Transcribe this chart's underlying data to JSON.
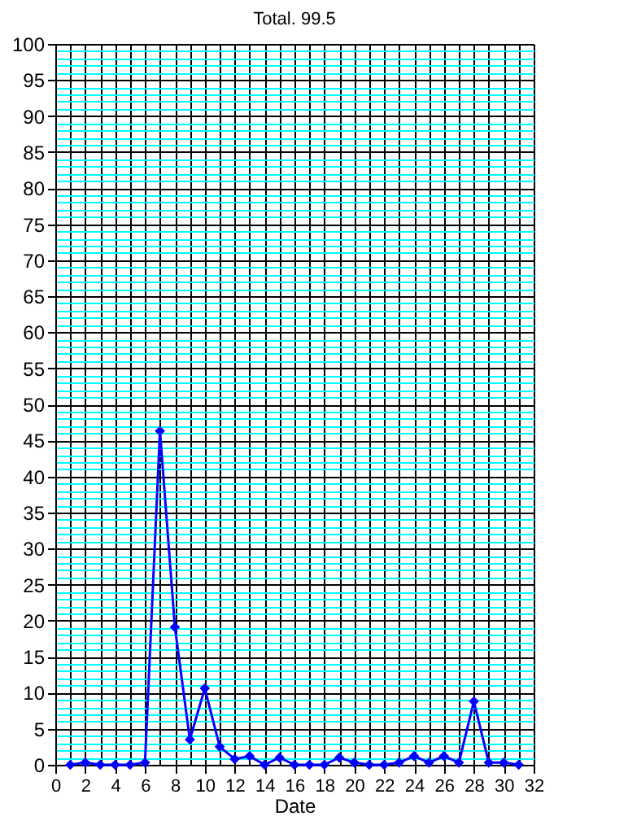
{
  "chart_data": {
    "type": "line",
    "title": "Total. 99.5",
    "xlabel": "Date",
    "x": [
      1,
      2,
      3,
      4,
      5,
      6,
      7,
      8,
      9,
      10,
      11,
      12,
      13,
      14,
      15,
      16,
      17,
      18,
      19,
      20,
      21,
      22,
      23,
      24,
      25,
      26,
      27,
      28,
      29,
      30,
      31
    ],
    "series": [
      {
        "color": "#0000ff",
        "values": [
          0,
          0.3,
          0,
          0,
          0,
          0.3,
          46.3,
          19.1,
          3.5,
          10.6,
          2.5,
          0.8,
          1.2,
          0,
          1,
          0,
          0,
          0,
          1,
          0.3,
          0,
          0,
          0.3,
          1.2,
          0.3,
          1.2,
          0.3,
          8.8,
          0.3,
          0.3,
          0
        ]
      }
    ],
    "xlim": [
      0,
      32
    ],
    "xticks": [
      0,
      {
        "value": 1,
        "label": null
      },
      2,
      {
        "value": 3,
        "label": null
      },
      4,
      {
        "value": 5,
        "label": null
      },
      6,
      {
        "value": 7,
        "label": null
      },
      8,
      {
        "value": 9,
        "label": null
      },
      10,
      {
        "value": 11,
        "label": null
      },
      12,
      {
        "value": 13,
        "label": null
      },
      14,
      {
        "value": 15,
        "label": null
      },
      16,
      {
        "value": 17,
        "label": null
      },
      18,
      {
        "value": 19,
        "label": null
      },
      20,
      {
        "value": 21,
        "label": null
      },
      22,
      {
        "value": 23,
        "label": null
      },
      24,
      {
        "value": 25,
        "label": null
      },
      26,
      {
        "value": 27,
        "label": null
      },
      28,
      {
        "value": 29,
        "label": null
      },
      30,
      {
        "value": 31,
        "label": null
      },
      32
    ],
    "ylim": [
      0,
      100
    ],
    "yticks": [
      0,
      {
        "value": 1,
        "label": null
      },
      {
        "value": 2,
        "label": null
      },
      {
        "value": 3,
        "label": null
      },
      {
        "value": 4,
        "label": null
      },
      5,
      {
        "value": 6,
        "label": null
      },
      {
        "value": 7,
        "label": null
      },
      {
        "value": 8,
        "label": null
      },
      {
        "value": 9,
        "label": null
      },
      10,
      {
        "value": 11,
        "label": null
      },
      {
        "value": 12,
        "label": null
      },
      {
        "value": 13,
        "label": null
      },
      {
        "value": 14,
        "label": null
      },
      15,
      {
        "value": 16,
        "label": null
      },
      {
        "value": 17,
        "label": null
      },
      {
        "value": 18,
        "label": null
      },
      {
        "value": 19,
        "label": null
      },
      20,
      {
        "value": 21,
        "label": null
      },
      {
        "value": 22,
        "label": null
      },
      {
        "value": 23,
        "label": null
      },
      {
        "value": 24,
        "label": null
      },
      25,
      {
        "value": 26,
        "label": null
      },
      {
        "value": 27,
        "label": null
      },
      {
        "value": 28,
        "label": null
      },
      {
        "value": 29,
        "label": null
      },
      30,
      {
        "value": 31,
        "label": null
      },
      {
        "value": 32,
        "label": null
      },
      {
        "value": 33,
        "label": null
      },
      {
        "value": 34,
        "label": null
      },
      35,
      {
        "value": 36,
        "label": null
      },
      {
        "value": 37,
        "label": null
      },
      {
        "value": 38,
        "label": null
      },
      {
        "value": 39,
        "label": null
      },
      40,
      {
        "value": 41,
        "label": null
      },
      {
        "value": 42,
        "label": null
      },
      {
        "value": 43,
        "label": null
      },
      {
        "value": 44,
        "label": null
      },
      45,
      {
        "value": 46,
        "label": null
      },
      {
        "value": 47,
        "label": null
      },
      {
        "value": 48,
        "label": null
      },
      {
        "value": 49,
        "label": null
      },
      50,
      {
        "value": 51,
        "label": null
      },
      {
        "value": 52,
        "label": null
      },
      {
        "value": 53,
        "label": null
      },
      {
        "value": 54,
        "label": null
      },
      55,
      {
        "value": 56,
        "label": null
      },
      {
        "value": 57,
        "label": null
      },
      {
        "value": 58,
        "label": null
      },
      {
        "value": 59,
        "label": null
      },
      60,
      {
        "value": 61,
        "label": null
      },
      {
        "value": 62,
        "label": null
      },
      {
        "value": 63,
        "label": null
      },
      {
        "value": 64,
        "label": null
      },
      65,
      {
        "value": 66,
        "label": null
      },
      {
        "value": 67,
        "label": null
      },
      {
        "value": 68,
        "label": null
      },
      {
        "value": 69,
        "label": null
      },
      70,
      {
        "value": 71,
        "label": null
      },
      {
        "value": 72,
        "label": null
      },
      {
        "value": 73,
        "label": null
      },
      {
        "value": 74,
        "label": null
      },
      75,
      {
        "value": 76,
        "label": null
      },
      {
        "value": 77,
        "label": null
      },
      {
        "value": 78,
        "label": null
      },
      {
        "value": 79,
        "label": null
      },
      80,
      {
        "value": 81,
        "label": null
      },
      {
        "value": 82,
        "label": null
      },
      {
        "value": 83,
        "label": null
      },
      {
        "value": 84,
        "label": null
      },
      85,
      {
        "value": 86,
        "label": null
      },
      {
        "value": 87,
        "label": null
      },
      {
        "value": 88,
        "label": null
      },
      {
        "value": 89,
        "label": null
      },
      90,
      {
        "value": 91,
        "label": null
      },
      {
        "value": 92,
        "label": null
      },
      {
        "value": 93,
        "label": null
      },
      {
        "value": 94,
        "label": null
      },
      95,
      {
        "value": 96,
        "label": null
      },
      {
        "value": 97,
        "label": null
      },
      {
        "value": 98,
        "label": null
      },
      {
        "value": 99,
        "label": null
      },
      100
    ],
    "grid": true,
    "marker": "diamond",
    "line_style": "solid"
  }
}
